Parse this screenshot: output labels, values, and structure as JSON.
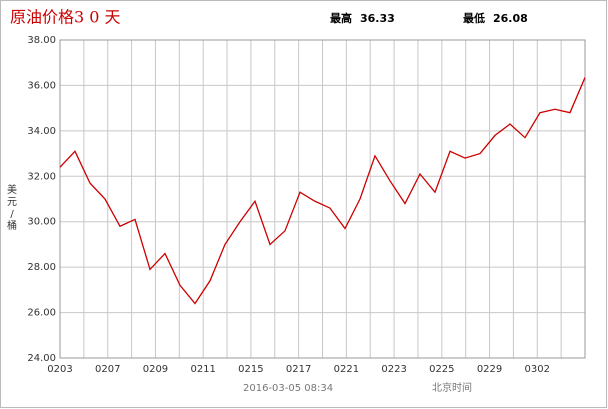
{
  "chart_data": {
    "type": "line",
    "title": "原油价格3 0 天",
    "high_label": "最高",
    "high_value": "36.33",
    "low_label": "最低",
    "low_value": "26.08",
    "y_label": "美元/桶",
    "timestamp": "2016-03-05 08:34",
    "timezone": "北京时间",
    "x_labels": [
      "0203",
      "0207",
      "0209",
      "0211",
      "0215",
      "0217",
      "0221",
      "0223",
      "0225",
      "0229",
      "0302"
    ],
    "values": [
      32.4,
      33.1,
      31.7,
      31.0,
      29.8,
      30.1,
      27.9,
      28.6,
      27.2,
      26.4,
      27.4,
      29.0,
      30.0,
      30.9,
      29.0,
      29.6,
      31.3,
      30.9,
      30.6,
      29.7,
      31.0,
      32.9,
      31.8,
      30.8,
      32.1,
      31.3,
      33.1,
      32.8,
      33.0,
      33.8,
      34.3,
      33.7,
      34.8,
      34.95,
      34.8,
      36.35
    ],
    "color": "#cc0000",
    "ylim": [
      24,
      38
    ],
    "yticks": [
      {
        "value": 24,
        "label": "24.00"
      },
      {
        "value": 26,
        "label": "26.00"
      },
      {
        "value": 28,
        "label": "28.00"
      },
      {
        "value": 30,
        "label": "30.00"
      },
      {
        "value": 32,
        "label": "32.00"
      },
      {
        "value": 34,
        "label": "34.00"
      },
      {
        "value": 36,
        "label": "36.00"
      },
      {
        "value": 38,
        "label": "38.00"
      }
    ],
    "grid": true
  }
}
